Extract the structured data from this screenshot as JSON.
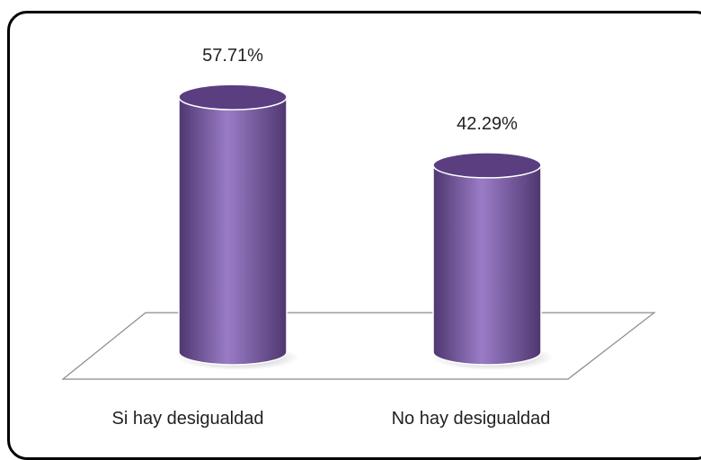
{
  "chart_data": {
    "type": "bar",
    "categories": [
      "Si hay desigualdad",
      "No hay desigualdad"
    ],
    "values": [
      57.71,
      42.29
    ],
    "data_labels": [
      "57.71%",
      "42.29%"
    ],
    "ylim": [
      0,
      60
    ],
    "grid": false,
    "legend": "none",
    "colors": {
      "bar": "#7b5aa6",
      "bar_light": "#9a7cc6",
      "bar_dark": "#4e3770",
      "top": "#5a3e80",
      "floor_stroke": "#888888"
    }
  }
}
